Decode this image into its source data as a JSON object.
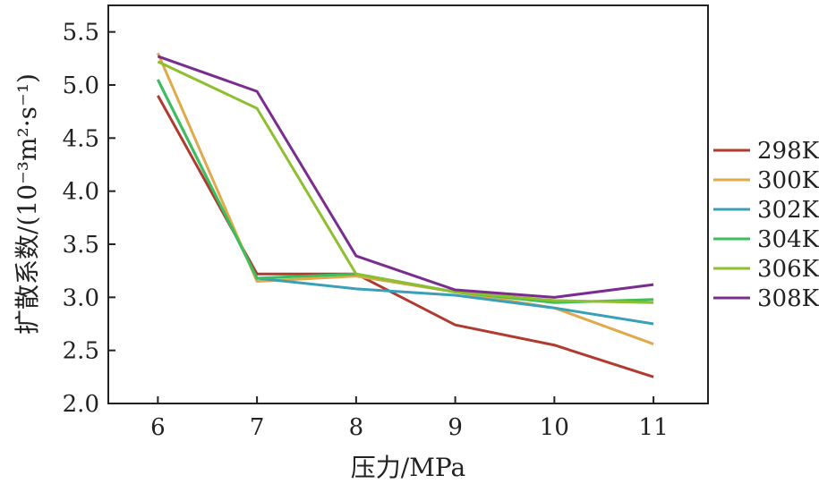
{
  "chart_data": {
    "type": "line",
    "xlabel": "压力/MPa",
    "ylabel": "扩散系数/(10⁻³m²·s⁻¹)",
    "xlim": [
      5.5,
      11.55
    ],
    "ylim": [
      2.0,
      5.75
    ],
    "x_ticks": [
      "6",
      "7",
      "8",
      "9",
      "10",
      "11"
    ],
    "y_ticks": [
      "2.0",
      "2.5",
      "3.0",
      "3.5",
      "4.0",
      "4.5",
      "5.0",
      "5.5"
    ],
    "x": [
      6,
      7,
      8,
      9,
      10,
      11
    ],
    "legend_position": "right",
    "grid": false,
    "series": [
      {
        "name": "298K",
        "color": "#b03a2e",
        "values": [
          4.9,
          3.22,
          3.22,
          2.74,
          2.55,
          2.25
        ]
      },
      {
        "name": "300K",
        "color": "#e0a94a",
        "values": [
          5.3,
          3.15,
          3.2,
          3.05,
          2.9,
          2.56
        ]
      },
      {
        "name": "302K",
        "color": "#3aa0b8",
        "values": [
          5.05,
          3.18,
          3.08,
          3.02,
          2.9,
          2.75
        ]
      },
      {
        "name": "304K",
        "color": "#3cbf5a",
        "values": [
          5.05,
          3.18,
          3.22,
          3.05,
          2.95,
          2.98
        ]
      },
      {
        "name": "306K",
        "color": "#8dbf2f",
        "values": [
          5.22,
          4.78,
          3.22,
          3.05,
          2.97,
          2.95
        ]
      },
      {
        "name": "308K",
        "color": "#7a2c8f",
        "values": [
          5.27,
          4.94,
          3.39,
          3.07,
          3.0,
          3.12
        ]
      }
    ]
  }
}
